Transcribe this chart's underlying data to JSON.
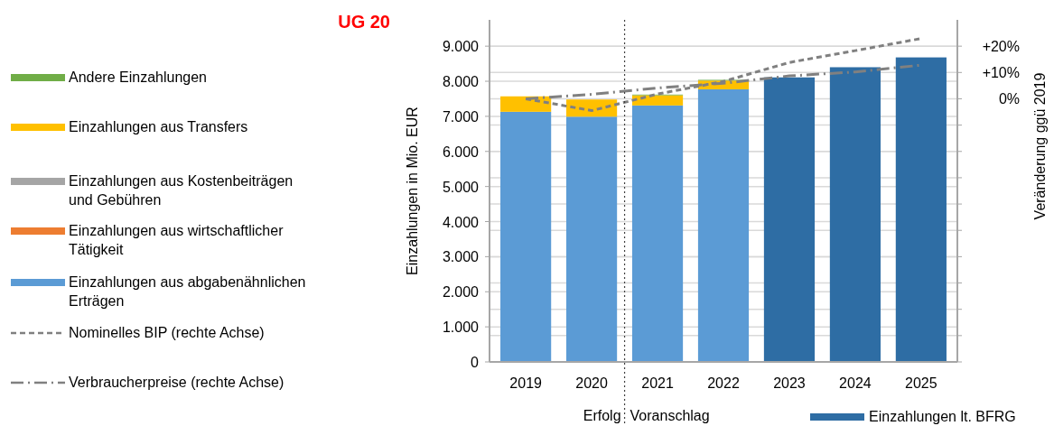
{
  "chart_data": {
    "type": "bar",
    "title": "UG 20",
    "ylabel": "Einzahlungen in Mio. EUR",
    "y2label": "Veränderung ggü 2019",
    "x": [
      2019,
      2020,
      2021,
      2022,
      2023,
      2024,
      2025
    ],
    "xlim": [
      2018.45,
      2025.55
    ],
    "xticks": [
      2019,
      2020,
      2021,
      2022,
      2023,
      2024,
      2025
    ],
    "stacked": true,
    "series": [
      {
        "name": "Einzahlungen aus abgabenähnlichen Erträgen",
        "color": "#5b9bd5",
        "values": [
          7130,
          6990,
          7310,
          7770,
          null,
          null,
          null
        ]
      },
      {
        "name": "Einzahlungen aus wirtschaftlicher Tätigkeit",
        "color": "#ed7d31",
        "values": [
          0,
          0,
          0,
          0,
          null,
          null,
          null
        ]
      },
      {
        "name": "Einzahlungen aus Kostenbeiträgen und Gebühren",
        "color": "#a5a5a5",
        "values": [
          0,
          0,
          0,
          0,
          null,
          null,
          null
        ]
      },
      {
        "name": "Einzahlungen aus Transfers",
        "color": "#ffc000",
        "values": [
          440,
          490,
          290,
          250,
          null,
          null,
          null
        ]
      },
      {
        "name": "Andere Einzahlungen",
        "color": "#70ad47",
        "values": [
          0,
          0,
          20,
          20,
          null,
          null,
          null
        ]
      },
      {
        "name": "Einzahlungen lt. BFRG",
        "color": "#2e6da4",
        "values": [
          null,
          null,
          null,
          null,
          8110,
          8400,
          8680
        ]
      },
      {
        "name": "Nominelles BIP (rechte Achse)",
        "type": "line",
        "axis": "y2",
        "line_style": "dashed",
        "color": "#808080",
        "values": [
          0,
          -4.5,
          1.8,
          6.6,
          13.8,
          18.3,
          22.9
        ]
      },
      {
        "name": "Verbraucherpreise (rechte Achse)",
        "type": "line",
        "axis": "y2",
        "line_style": "dashdot",
        "color": "#808080",
        "values": [
          0,
          1.7,
          4.1,
          5.9,
          8.7,
          10.2,
          12.8
        ]
      }
    ],
    "ylim": [
      0,
      9750
    ],
    "yticks": [
      0,
      {
        "value": 1000,
        "label": "1.000"
      },
      {
        "value": 2000,
        "label": "2.000"
      },
      {
        "value": 3000,
        "label": "3.000"
      },
      {
        "value": 4000,
        "label": "4.000"
      },
      {
        "value": 5000,
        "label": "5.000"
      },
      {
        "value": 6000,
        "label": "6.000"
      },
      {
        "value": 7000,
        "label": "7.000"
      },
      {
        "value": 8000,
        "label": "8.000"
      },
      {
        "value": 9000,
        "label": "9.000"
      }
    ],
    "y2lim": [
      -100,
      30
    ],
    "y2ticks": [
      {
        "value": -100,
        "label": null
      },
      {
        "value": -90,
        "label": null
      },
      {
        "value": -80,
        "label": null
      },
      {
        "value": -70,
        "label": null
      },
      {
        "value": -60,
        "label": null
      },
      {
        "value": -50,
        "label": null
      },
      {
        "value": -40,
        "label": null
      },
      {
        "value": -30,
        "label": null
      },
      {
        "value": -20,
        "label": null
      },
      {
        "value": -10,
        "label": null
      },
      {
        "value": 0,
        "label": "0%"
      },
      {
        "value": 10,
        "label": "+10%"
      },
      {
        "value": 20,
        "label": "+20%"
      }
    ],
    "grid": true,
    "legend": "left",
    "ref_lines": [
      {
        "axis": "x",
        "value": 2020.5,
        "line_style": "dotted",
        "color": "#404040"
      }
    ],
    "annotations": [
      "Erfolg",
      "Voranschlag"
    ]
  }
}
